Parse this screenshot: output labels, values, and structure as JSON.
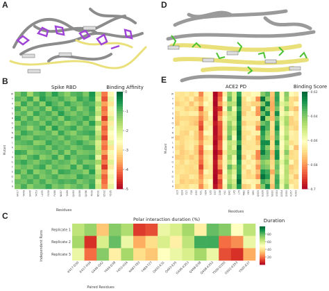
{
  "panels": {
    "a": "A",
    "d": "D",
    "b": "B",
    "e": "E",
    "c": "C"
  },
  "colors": {
    "protein_gray": "#8c8c8c",
    "ribbon_yellow": "#e9e07a",
    "ligand_purple": "#a044d8",
    "ligand_green": "#4cc233"
  },
  "chart_data": [
    {
      "id": "B",
      "type": "heatmap",
      "title": "Spike RBD",
      "colorbar_label": "Binding Affinity",
      "ylabel": "Mutant",
      "xlabel": "Residues",
      "x_ticks": [
        "K417",
        "Y449",
        "G446",
        "Y453",
        "L455",
        "F456",
        "F486",
        "N487",
        "Y489",
        "Q493",
        "G496",
        "Q498",
        "T500",
        "N501",
        "G502",
        "Y505"
      ],
      "y_ticks": [
        "W",
        "Y",
        "V",
        "T",
        "S",
        "R",
        "Q",
        "P",
        "N",
        "M",
        "L",
        "K",
        "I",
        "H",
        "G",
        "F",
        "E",
        "D",
        "C",
        "A"
      ],
      "cbar": {
        "min": -5,
        "max": 0,
        "ticks": [
          0,
          -1,
          -2,
          -3,
          -4,
          -5
        ],
        "colormap": "RdYlGn"
      },
      "values": [
        [
          -1.2,
          -0.8,
          -1.5,
          -0.9,
          -0.7,
          -1.1,
          -0.6,
          -1.0,
          -1.3,
          -0.9,
          -0.8,
          -1.2,
          -0.5,
          -1.8,
          -3.9,
          -2.6
        ],
        [
          -0.9,
          -1.1,
          -0.7,
          -1.4,
          -0.6,
          -0.9,
          -1.0,
          -0.8,
          -1.1,
          -1.3,
          -0.7,
          -0.9,
          -0.6,
          -2.0,
          -4.2,
          -2.2
        ],
        [
          -1.4,
          -0.7,
          -1.2,
          -0.8,
          -1.3,
          -0.6,
          -0.9,
          -1.2,
          -0.7,
          -1.0,
          -1.1,
          -0.8,
          -0.9,
          -1.6,
          -3.6,
          -2.9
        ],
        [
          -0.8,
          -1.3,
          -0.9,
          -1.1,
          -0.8,
          -1.4,
          -0.7,
          -0.9,
          -1.2,
          -0.8,
          -1.3,
          -1.0,
          -0.7,
          -1.9,
          -4.0,
          -2.4
        ],
        [
          -1.1,
          -0.9,
          -1.3,
          -0.7,
          -1.0,
          -0.8,
          -1.2,
          -0.6,
          -1.0,
          -1.2,
          -0.9,
          -1.1,
          -0.8,
          -1.7,
          -3.8,
          -2.7
        ],
        [
          -0.7,
          -1.2,
          -0.8,
          -1.3,
          -0.9,
          -1.1,
          -0.8,
          -1.3,
          -0.7,
          -0.9,
          -1.0,
          -0.7,
          -1.1,
          -2.2,
          -4.4,
          -2.1
        ],
        [
          -1.3,
          -0.8,
          -1.0,
          -0.9,
          -1.2,
          -0.7,
          -1.1,
          -0.9,
          -1.3,
          -1.1,
          -0.8,
          -1.2,
          -0.6,
          -1.5,
          -3.7,
          -2.8
        ],
        [
          -0.9,
          -1.0,
          -1.4,
          -1.0,
          -0.7,
          -1.3,
          -0.6,
          -1.1,
          -0.9,
          -0.7,
          -1.2,
          -0.9,
          -1.0,
          -2.1,
          -4.1,
          -2.3
        ],
        [
          -1.2,
          -0.7,
          -0.9,
          -1.2,
          -1.1,
          -0.9,
          -1.3,
          -0.7,
          -1.1,
          -1.3,
          -0.9,
          -0.8,
          -0.7,
          -1.8,
          -3.9,
          -2.5
        ],
        [
          -0.8,
          -1.1,
          -1.2,
          -0.8,
          -0.9,
          -1.0,
          -0.9,
          -1.2,
          -0.8,
          -1.0,
          -1.1,
          -1.3,
          -0.9,
          -1.6,
          -4.3,
          -2.6
        ],
        [
          -1.0,
          -0.9,
          -0.8,
          -1.3,
          -1.2,
          -0.7,
          -1.0,
          -0.9,
          -1.2,
          -0.9,
          -0.7,
          -1.0,
          -1.2,
          -2.0,
          -3.8,
          -2.2
        ],
        [
          -1.3,
          -1.2,
          -1.1,
          -0.9,
          -0.8,
          -1.2,
          -0.8,
          -1.0,
          -0.9,
          -1.2,
          -1.0,
          -0.8,
          -0.8,
          -1.9,
          -4.0,
          -2.9
        ],
        [
          -0.7,
          -0.8,
          -1.3,
          -1.1,
          -1.0,
          -0.9,
          -1.2,
          -0.8,
          -1.3,
          -0.8,
          -1.2,
          -1.1,
          -1.0,
          -1.7,
          -3.6,
          -2.4
        ],
        [
          -1.1,
          -1.3,
          -0.9,
          -0.7,
          -1.3,
          -1.1,
          -0.7,
          -1.3,
          -0.7,
          -1.1,
          -0.9,
          -0.9,
          -0.7,
          -2.2,
          -4.2,
          -2.7
        ],
        [
          -0.9,
          -0.7,
          -1.0,
          -1.2,
          -0.9,
          -0.8,
          -1.1,
          -0.9,
          -1.0,
          -1.3,
          -0.8,
          -1.2,
          -1.1,
          -1.5,
          -3.9,
          -2.1
        ],
        [
          -1.2,
          -1.0,
          -1.2,
          -0.9,
          -0.7,
          -1.3,
          -0.9,
          -1.1,
          -1.2,
          -0.7,
          -1.3,
          -0.7,
          -0.9,
          -2.0,
          -4.4,
          -2.8
        ],
        [
          -0.8,
          -1.2,
          -0.7,
          -1.3,
          -1.1,
          -0.9,
          -1.3,
          -0.7,
          -0.8,
          -1.0,
          -1.0,
          -1.3,
          -0.6,
          -1.8,
          -3.7,
          -2.5
        ],
        [
          -1.4,
          -0.9,
          -1.1,
          -0.8,
          -1.2,
          -1.0,
          -0.8,
          -1.2,
          -1.1,
          -1.2,
          -0.7,
          -0.9,
          -1.0,
          -1.6,
          -4.1,
          -2.3
        ],
        [
          -1.0,
          -1.1,
          -0.8,
          -1.1,
          -0.8,
          -1.2,
          -1.0,
          -0.8,
          -0.9,
          -0.8,
          -1.2,
          -1.0,
          -0.8,
          -2.1,
          -4.0,
          -2.6
        ],
        [
          -1.2,
          -0.8,
          -1.3,
          -1.0,
          -1.0,
          -0.7,
          -1.2,
          -1.0,
          -1.3,
          -1.1,
          -0.9,
          -1.2,
          -0.7,
          -1.9,
          -3.8,
          -2.2
        ]
      ]
    },
    {
      "id": "E",
      "type": "heatmap",
      "title": "ACE2 PD",
      "colorbar_label": "Binding Score",
      "ylabel": "Mutant",
      "xlabel": "Residues",
      "x_ticks": [
        "S19",
        "Q24",
        "T27",
        "F28",
        "D30",
        "K31",
        "H34",
        "E35",
        "E37",
        "D38",
        "Y41",
        "Q42",
        "L45",
        "L79",
        "M82",
        "Y83",
        "N90",
        "Q325",
        "G326",
        "E329",
        "N330",
        "K353",
        "G354",
        "D355",
        "R357",
        "R393"
      ],
      "y_ticks": [
        "W",
        "Y",
        "V",
        "T",
        "S",
        "R",
        "Q",
        "P",
        "N",
        "M",
        "L",
        "K",
        "I",
        "H",
        "G",
        "F",
        "E",
        "D",
        "C",
        "A"
      ],
      "cbar": {
        "min": -0.7,
        "max": -0.62,
        "ticks": [
          -0.62,
          -0.64,
          -0.66,
          -0.68,
          -0.7
        ],
        "colormap": "RdYlGn"
      },
      "values": [
        [
          -0.666,
          -0.667,
          -0.665,
          -0.668,
          -0.664,
          -0.681,
          -0.663,
          -0.662,
          -0.699,
          -0.688,
          -0.664,
          -0.641,
          -0.652,
          -0.63,
          -0.663,
          -0.664,
          -0.661,
          -0.662,
          -0.64,
          -0.634,
          -0.672,
          -0.631,
          -0.662,
          -0.64,
          -0.661,
          -0.664
        ],
        [
          -0.668,
          -0.666,
          -0.669,
          -0.664,
          -0.672,
          -0.676,
          -0.666,
          -0.662,
          -0.698,
          -0.684,
          -0.66,
          -0.636,
          -0.652,
          -0.625,
          -0.668,
          -0.661,
          -0.664,
          -0.68,
          -0.622,
          -0.641,
          -0.674,
          -0.63,
          -0.658,
          -0.642,
          -0.668,
          -0.67
        ],
        [
          -0.67,
          -0.668,
          -0.666,
          -0.672,
          -0.666,
          -0.673,
          -0.661,
          -0.664,
          -0.699,
          -0.679,
          -0.666,
          -0.646,
          -0.648,
          -0.624,
          -0.669,
          -0.666,
          -0.67,
          -0.67,
          -0.64,
          -0.625,
          -0.676,
          -0.633,
          -0.654,
          -0.65,
          -0.668,
          -0.662
        ],
        [
          -0.665,
          -0.666,
          -0.67,
          -0.668,
          -0.67,
          -0.686,
          -0.666,
          -0.664,
          -0.697,
          -0.692,
          -0.661,
          -0.637,
          -0.657,
          -0.631,
          -0.669,
          -0.669,
          -0.66,
          -0.678,
          -0.623,
          -0.64,
          -0.676,
          -0.638,
          -0.663,
          -0.641,
          -0.669,
          -0.673
        ],
        [
          -0.669,
          -0.665,
          -0.666,
          -0.664,
          -0.664,
          -0.677,
          -0.67,
          -0.66,
          -0.698,
          -0.682,
          -0.666,
          -0.648,
          -0.652,
          -0.625,
          -0.671,
          -0.664,
          -0.666,
          -0.679,
          -0.637,
          -0.626,
          -0.672,
          -0.626,
          -0.658,
          -0.653,
          -0.662,
          -0.667
        ],
        [
          -0.67,
          -0.669,
          -0.669,
          -0.67,
          -0.671,
          -0.681,
          -0.671,
          -0.664,
          -0.699,
          -0.677,
          -0.658,
          -0.65,
          -0.649,
          -0.623,
          -0.665,
          -0.664,
          -0.664,
          -0.664,
          -0.621,
          -0.645,
          -0.674,
          -0.638,
          -0.654,
          -0.645,
          -0.67,
          -0.666
        ],
        [
          -0.671,
          -0.666,
          -0.667,
          -0.67,
          -0.673,
          -0.686,
          -0.665,
          -0.667,
          -0.696,
          -0.687,
          -0.664,
          -0.643,
          -0.653,
          -0.627,
          -0.671,
          -0.666,
          -0.666,
          -0.672,
          -0.637,
          -0.633,
          -0.667,
          -0.631,
          -0.656,
          -0.644,
          -0.67,
          -0.669
        ],
        [
          -0.665,
          -0.667,
          -0.668,
          -0.668,
          -0.668,
          -0.689,
          -0.667,
          -0.663,
          -0.698,
          -0.688,
          -0.666,
          -0.64,
          -0.647,
          -0.624,
          -0.666,
          -0.663,
          -0.663,
          -0.68,
          -0.625,
          -0.634,
          -0.668,
          -0.627,
          -0.662,
          -0.648,
          -0.667,
          -0.67
        ],
        [
          -0.665,
          -0.669,
          -0.67,
          -0.664,
          -0.67,
          -0.681,
          -0.661,
          -0.662,
          -0.698,
          -0.688,
          -0.663,
          -0.641,
          -0.654,
          -0.622,
          -0.668,
          -0.667,
          -0.663,
          -0.664,
          -0.629,
          -0.641,
          -0.669,
          -0.633,
          -0.66,
          -0.649,
          -0.663,
          -0.665
        ],
        [
          -0.671,
          -0.669,
          -0.667,
          -0.666,
          -0.67,
          -0.681,
          -0.669,
          -0.666,
          -0.697,
          -0.69,
          -0.666,
          -0.636,
          -0.658,
          -0.624,
          -0.669,
          -0.663,
          -0.666,
          -0.676,
          -0.632,
          -0.643,
          -0.671,
          -0.635,
          -0.657,
          -0.645,
          -0.664,
          -0.665
        ],
        [
          -0.666,
          -0.669,
          -0.666,
          -0.665,
          -0.667,
          -0.678,
          -0.666,
          -0.666,
          -0.699,
          -0.686,
          -0.661,
          -0.648,
          -0.651,
          -0.631,
          -0.668,
          -0.666,
          -0.666,
          -0.672,
          -0.626,
          -0.626,
          -0.668,
          -0.627,
          -0.66,
          -0.65,
          -0.668,
          -0.665
        ],
        [
          -0.669,
          -0.67,
          -0.666,
          -0.664,
          -0.671,
          -0.684,
          -0.662,
          -0.66,
          -0.697,
          -0.685,
          -0.659,
          -0.646,
          -0.654,
          -0.621,
          -0.666,
          -0.667,
          -0.666,
          -0.666,
          -0.629,
          -0.64,
          -0.668,
          -0.635,
          -0.661,
          -0.647,
          -0.662,
          -0.673
        ],
        [
          -0.666,
          -0.671,
          -0.669,
          -0.666,
          -0.671,
          -0.686,
          -0.669,
          -0.667,
          -0.699,
          -0.692,
          -0.666,
          -0.647,
          -0.646,
          -0.625,
          -0.666,
          -0.664,
          -0.665,
          -0.681,
          -0.624,
          -0.634,
          -0.675,
          -0.627,
          -0.663,
          -0.64,
          -0.669,
          -0.667
        ],
        [
          -0.671,
          -0.67,
          -0.668,
          -0.671,
          -0.668,
          -0.682,
          -0.666,
          -0.664,
          -0.698,
          -0.683,
          -0.662,
          -0.643,
          -0.656,
          -0.623,
          -0.671,
          -0.662,
          -0.67,
          -0.681,
          -0.634,
          -0.635,
          -0.672,
          -0.626,
          -0.658,
          -0.647,
          -0.668,
          -0.667
        ],
        [
          -0.666,
          -0.669,
          -0.665,
          -0.668,
          -0.669,
          -0.684,
          -0.668,
          -0.664,
          -0.696,
          -0.677,
          -0.663,
          -0.648,
          -0.658,
          -0.628,
          -0.664,
          -0.666,
          -0.663,
          -0.672,
          -0.64,
          -0.644,
          -0.669,
          -0.639,
          -0.655,
          -0.643,
          -0.662,
          -0.669
        ],
        [
          -0.668,
          -0.667,
          -0.668,
          -0.669,
          -0.667,
          -0.689,
          -0.669,
          -0.666,
          -0.697,
          -0.68,
          -0.663,
          -0.636,
          -0.647,
          -0.631,
          -0.668,
          -0.662,
          -0.665,
          -0.679,
          -0.637,
          -0.64,
          -0.668,
          -0.636,
          -0.658,
          -0.647,
          -0.671,
          -0.668
        ],
        [
          -0.667,
          -0.666,
          -0.668,
          -0.669,
          -0.669,
          -0.682,
          -0.662,
          -0.665,
          -0.698,
          -0.691,
          -0.659,
          -0.644,
          -0.653,
          -0.63,
          -0.665,
          -0.67,
          -0.665,
          -0.673,
          -0.628,
          -0.632,
          -0.676,
          -0.639,
          -0.661,
          -0.646,
          -0.669,
          -0.666
        ],
        [
          -0.665,
          -0.669,
          -0.669,
          -0.665,
          -0.667,
          -0.679,
          -0.667,
          -0.667,
          -0.699,
          -0.682,
          -0.664,
          -0.647,
          -0.656,
          -0.625,
          -0.667,
          -0.669,
          -0.668,
          -0.679,
          -0.622,
          -0.629,
          -0.669,
          -0.633,
          -0.657,
          -0.647,
          -0.665,
          -0.672
        ],
        [
          -0.665,
          -0.671,
          -0.669,
          -0.67,
          -0.669,
          -0.676,
          -0.663,
          -0.66,
          -0.699,
          -0.689,
          -0.66,
          -0.645,
          -0.651,
          -0.621,
          -0.664,
          -0.662,
          -0.663,
          -0.665,
          -0.632,
          -0.637,
          -0.669,
          -0.631,
          -0.655,
          -0.646,
          -0.668,
          -0.666
        ],
        [
          -0.669,
          -0.667,
          -0.668,
          -0.664,
          -0.665,
          -0.68,
          -0.668,
          -0.662,
          -0.697,
          -0.687,
          -0.663,
          -0.639,
          -0.648,
          -0.628,
          -0.671,
          -0.669,
          -0.662,
          -0.676,
          -0.64,
          -0.626,
          -0.673,
          -0.633,
          -0.657,
          -0.641,
          -0.662,
          -0.667
        ]
      ]
    },
    {
      "id": "C",
      "type": "heatmap",
      "title": "Polar interaction duration (%)",
      "colorbar_label": "Duration",
      "ylabel": "Independent Runs",
      "xlabel": "Paired Residues",
      "x_ticks": [
        "K417-D30",
        "K417-H34",
        "G446-Q42",
        "Y449-D38",
        "Y453-H34",
        "N487-Y83",
        "Y489-T27",
        "Q493-K31",
        "Q493-E35",
        "G496-K353",
        "Q498-D38",
        "Q498-K353",
        "T500-D355",
        "G502-K353",
        "Y505-E37"
      ],
      "y_ticks": [
        "Replicate 1",
        "Replicate 2",
        "Replicate 3"
      ],
      "cbar": {
        "min": 0,
        "max": 100,
        "ticks": [
          80,
          60,
          40,
          20
        ],
        "colormap": "RdYlGn"
      },
      "values": [
        [
          65,
          72,
          35,
          75,
          68,
          12,
          15,
          55,
          60,
          70,
          45,
          80,
          75,
          50,
          65
        ],
        [
          70,
          10,
          60,
          80,
          55,
          30,
          40,
          60,
          45,
          65,
          85,
          85,
          20,
          25,
          55
        ],
        [
          55,
          20,
          75,
          45,
          70,
          40,
          35,
          50,
          55,
          60,
          70,
          55,
          15,
          10,
          30
        ]
      ]
    }
  ]
}
